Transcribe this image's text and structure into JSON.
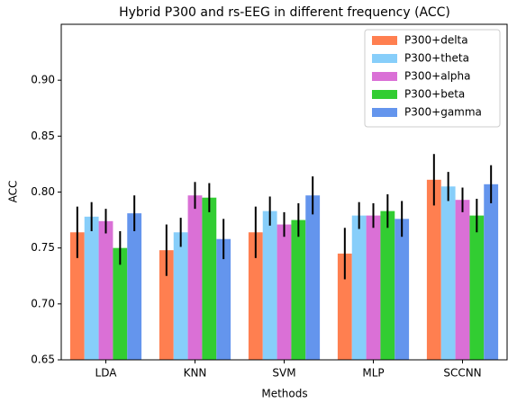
{
  "chart_data": {
    "type": "bar",
    "title": "Hybrid P300 and rs-EEG in different frequency  (ACC)",
    "x_label": "Methods",
    "y_label": "ACC",
    "categories": [
      "LDA",
      "KNN",
      "SVM",
      "MLP",
      "SCCNN"
    ],
    "series": [
      {
        "name": "P300+delta",
        "color": "#ff7f50",
        "values": [
          0.764,
          0.748,
          0.764,
          0.745,
          0.811
        ],
        "errors": [
          0.023,
          0.023,
          0.023,
          0.023,
          0.023
        ]
      },
      {
        "name": "P300+theta",
        "color": "#87cefa",
        "values": [
          0.778,
          0.764,
          0.783,
          0.779,
          0.805
        ],
        "errors": [
          0.013,
          0.013,
          0.013,
          0.012,
          0.013
        ]
      },
      {
        "name": "P300+alpha",
        "color": "#da70d6",
        "values": [
          0.774,
          0.797,
          0.771,
          0.779,
          0.793
        ],
        "errors": [
          0.011,
          0.012,
          0.011,
          0.011,
          0.011
        ]
      },
      {
        "name": "P300+beta",
        "color": "#32cd32",
        "values": [
          0.75,
          0.795,
          0.775,
          0.783,
          0.779
        ],
        "errors": [
          0.015,
          0.013,
          0.015,
          0.015,
          0.015
        ]
      },
      {
        "name": "P300+gamma",
        "color": "#6495ed",
        "values": [
          0.781,
          0.758,
          0.797,
          0.776,
          0.807
        ],
        "errors": [
          0.016,
          0.018,
          0.017,
          0.016,
          0.017
        ]
      }
    ],
    "ylim": [
      0.65,
      0.95
    ],
    "yticks": [
      {
        "value": 0.65,
        "label": "0.65"
      },
      {
        "value": 0.7,
        "label": "0.70"
      },
      {
        "value": 0.75,
        "label": "0.75"
      },
      {
        "value": 0.8,
        "label": "0.80"
      },
      {
        "value": 0.85,
        "label": "0.85"
      },
      {
        "value": 0.9,
        "label": "0.90"
      }
    ],
    "legend": "upper right"
  }
}
